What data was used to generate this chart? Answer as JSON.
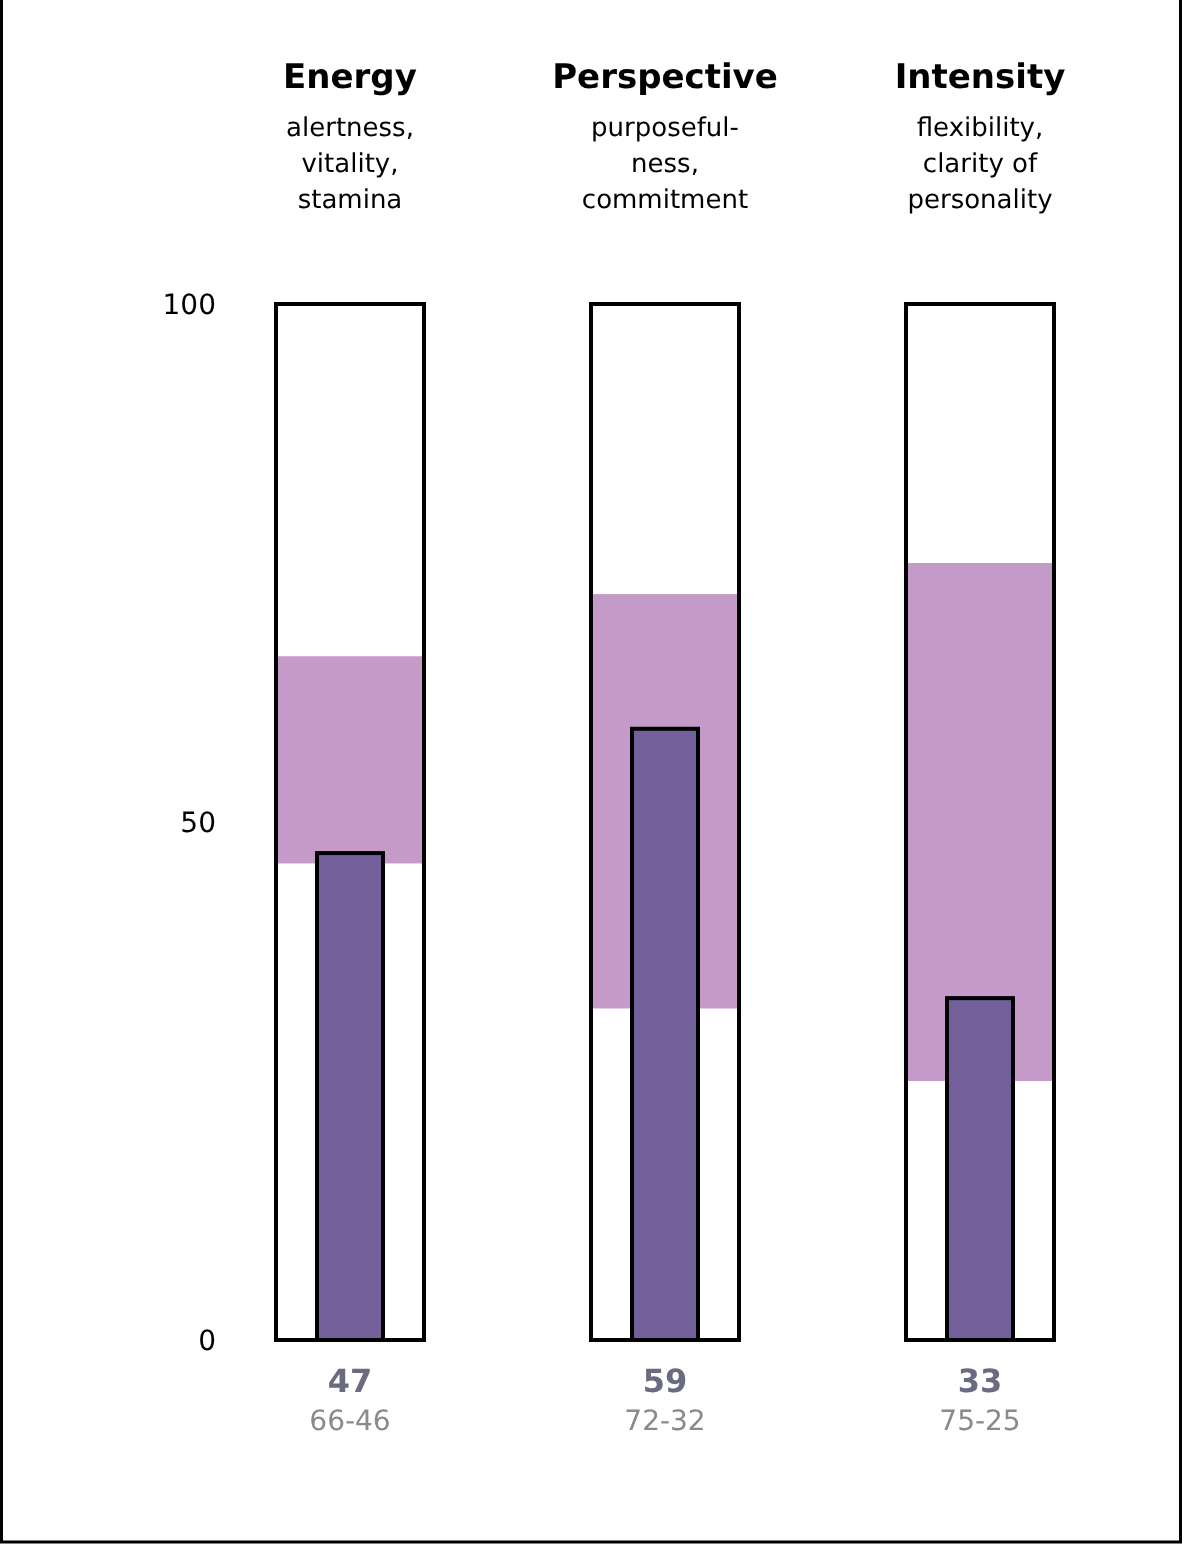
{
  "chart_data": {
    "type": "bar",
    "categories": [
      "Energy",
      "Perspective",
      "Intensity"
    ],
    "annotations": [
      "alertness,\nvitality,\nstamina",
      "purposeful-\nness,\ncommitment",
      "flexibility,\nclarity of\npersonality"
    ],
    "ylim": [
      0,
      100
    ],
    "yticks": [
      0,
      50,
      100
    ],
    "grid": false,
    "series": [
      {
        "color": "#c49ac8",
        "base": [
          46,
          32,
          25
        ],
        "values": [
          20,
          40,
          50
        ],
        "value_labels": [
          "66-46",
          "72-32",
          "75-25"
        ]
      },
      {
        "color": "#735f9a",
        "values": [
          47,
          59,
          33
        ],
        "value_labels": [
          "47",
          "59",
          "33"
        ]
      }
    ]
  }
}
